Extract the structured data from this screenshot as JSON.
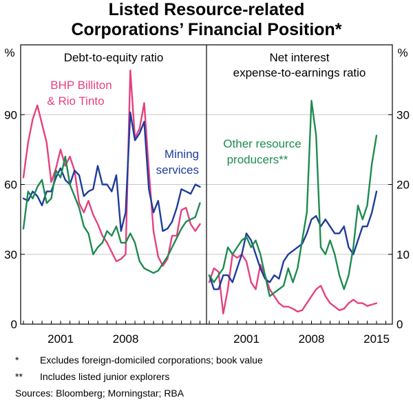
{
  "title_line1": "Listed Resource-related",
  "title_line2": "Corporations’ Financial Position*",
  "footnotes": {
    "n1_mark": "*",
    "n1_text": "Excludes foreign-domiciled corporations; book value",
    "n2_mark": "**",
    "n2_text": "Includes listed junior explorers",
    "sources": "Sources:   Bloomberg; Morningstar; RBA"
  },
  "colors": {
    "bhp": "#e5407f",
    "mining_services": "#1f3b9a",
    "other_resource": "#1d8b4f",
    "frame": "#000000"
  },
  "chart_data": [
    {
      "type": "line",
      "title": "Debt-to-equity ratio",
      "ylabel": "%",
      "ylim": [
        0,
        120
      ],
      "yticks": [
        0,
        30,
        60,
        90
      ],
      "xlim": [
        1996.7,
        2016.7
      ],
      "xticks": [
        2001,
        2008
      ],
      "x_tick_labels": [
        "2001",
        "2008"
      ],
      "series_labels": {
        "bhp": [
          "BHP Billiton",
          "& Rio Tinto"
        ],
        "mining_services": [
          "Mining",
          "services"
        ]
      },
      "series": [
        {
          "name": "BHP Billiton & Rio Tinto",
          "color_key": "bhp",
          "x": [
            1997.0,
            1997.5,
            1998.0,
            1998.5,
            1999.0,
            1999.5,
            2000.0,
            2000.5,
            2001.0,
            2001.5,
            2002.0,
            2002.5,
            2003.0,
            2003.5,
            2004.0,
            2004.5,
            2005.0,
            2005.5,
            2006.0,
            2006.5,
            2007.0,
            2007.5,
            2008.0,
            2008.5,
            2009.0,
            2009.5,
            2010.0,
            2010.5,
            2011.0,
            2011.5,
            2012.0,
            2012.5,
            2013.0,
            2013.5,
            2014.0,
            2014.5,
            2015.0,
            2015.5,
            2016.0
          ],
          "values": [
            63,
            78,
            88,
            94,
            86,
            78,
            61,
            67,
            75,
            68,
            72,
            66,
            52,
            48,
            53,
            47,
            43,
            38,
            35,
            31,
            27,
            28,
            30,
            109,
            80,
            84,
            95,
            66,
            40,
            29,
            25,
            28,
            38,
            38,
            49,
            50,
            43,
            40,
            43
          ]
        },
        {
          "name": "Mining services",
          "color_key": "mining_services",
          "x": [
            1997.0,
            1997.5,
            1998.0,
            1998.5,
            1999.0,
            1999.5,
            2000.0,
            2000.5,
            2001.0,
            2001.5,
            2002.0,
            2002.5,
            2003.0,
            2003.5,
            2004.0,
            2004.5,
            2005.0,
            2005.5,
            2006.0,
            2006.5,
            2007.0,
            2007.5,
            2008.0,
            2008.5,
            2009.0,
            2009.5,
            2010.0,
            2010.5,
            2011.0,
            2011.5,
            2012.0,
            2012.5,
            2013.0,
            2013.5,
            2014.0,
            2014.5,
            2015.0,
            2015.5,
            2016.0
          ],
          "values": [
            54,
            53,
            57,
            55,
            51,
            57,
            57,
            63,
            67,
            62,
            60,
            66,
            64,
            55,
            57,
            58,
            68,
            60,
            60,
            57,
            64,
            40,
            48,
            91,
            79,
            82,
            87,
            58,
            48,
            53,
            40,
            41,
            44,
            50,
            58,
            57,
            56,
            60,
            59
          ]
        },
        {
          "name": "Other resource producers",
          "color_key": "other_resource",
          "x": [
            1997.0,
            1997.5,
            1998.0,
            1998.5,
            1999.0,
            1999.5,
            2000.0,
            2000.5,
            2001.0,
            2001.5,
            2002.0,
            2002.5,
            2003.0,
            2003.5,
            2004.0,
            2004.5,
            2005.0,
            2005.5,
            2006.0,
            2006.5,
            2007.0,
            2007.5,
            2008.0,
            2008.5,
            2009.0,
            2009.5,
            2010.0,
            2010.5,
            2011.0,
            2011.5,
            2012.0,
            2012.5,
            2013.0,
            2013.5,
            2014.0,
            2014.5,
            2015.0,
            2015.5,
            2016.0
          ],
          "values": [
            41,
            57,
            54,
            59,
            62,
            52,
            54,
            66,
            63,
            72,
            60,
            55,
            50,
            42,
            39,
            30,
            33,
            35,
            40,
            38,
            42,
            35,
            35,
            39,
            35,
            27,
            24,
            23,
            22,
            23,
            26,
            29,
            33,
            37,
            41,
            44,
            45,
            46,
            52
          ]
        }
      ]
    },
    {
      "type": "line",
      "title": "Net interest expense-to-earnings ratio",
      "title_lines": [
        "Net interest",
        "expense-to-earnings ratio"
      ],
      "ylabel": "%",
      "ylim": [
        0,
        40
      ],
      "yticks": [
        0,
        10,
        20,
        30
      ],
      "xlim": [
        1996.7,
        2016.7
      ],
      "xticks": [
        2001,
        2008,
        2015
      ],
      "x_tick_labels": [
        "2001",
        "2008",
        "2015"
      ],
      "series_labels": {
        "other_resource": [
          "Other resource",
          "producers**"
        ]
      },
      "series": [
        {
          "name": "BHP Billiton & Rio Tinto",
          "color_key": "bhp",
          "x": [
            1997.0,
            1997.5,
            1998.0,
            1998.5,
            1999.0,
            1999.5,
            2000.0,
            2000.5,
            2001.0,
            2001.5,
            2002.0,
            2002.5,
            2003.0,
            2003.5,
            2004.0,
            2004.5,
            2005.0,
            2005.5,
            2006.0,
            2006.5,
            2007.0,
            2007.5,
            2008.0,
            2008.5,
            2009.0,
            2009.5,
            2010.0,
            2010.5,
            2011.0,
            2011.5,
            2012.0,
            2012.5,
            2013.0,
            2013.5,
            2014.0,
            2014.5,
            2015.0
          ],
          "values": [
            6,
            8,
            7.5,
            1.5,
            5,
            10,
            9.5,
            10,
            9,
            6,
            5,
            8.5,
            7,
            5,
            4,
            3,
            2.5,
            2.5,
            2.2,
            1.8,
            2,
            3,
            4,
            5,
            5.5,
            4,
            3,
            2.5,
            2,
            2.2,
            3,
            3.5,
            3,
            3,
            2.6,
            2.8,
            3
          ]
        },
        {
          "name": "Mining services",
          "color_key": "mining_services",
          "x": [
            1997.0,
            1997.5,
            1998.0,
            1998.5,
            1999.0,
            1999.5,
            2000.0,
            2000.5,
            2001.0,
            2001.5,
            2002.0,
            2002.5,
            2003.0,
            2003.5,
            2004.0,
            2004.5,
            2005.0,
            2005.5,
            2006.0,
            2006.5,
            2007.0,
            2007.5,
            2008.0,
            2008.5,
            2009.0,
            2009.5,
            2010.0,
            2010.5,
            2011.0,
            2011.5,
            2012.0,
            2012.5,
            2013.0,
            2013.5,
            2014.0,
            2014.5,
            2015.0
          ],
          "values": [
            7,
            5,
            5,
            7,
            7,
            6,
            8,
            10,
            13,
            12,
            10,
            8,
            6.5,
            6,
            7,
            6.5,
            9,
            10,
            10.5,
            11,
            11.5,
            13,
            15,
            15.5,
            14,
            15,
            14,
            13,
            13,
            14,
            11,
            10,
            12,
            14,
            14,
            16,
            19
          ]
        },
        {
          "name": "Other resource producers",
          "color_key": "other_resource",
          "x": [
            1997.0,
            1997.5,
            1998.0,
            1998.5,
            1999.0,
            1999.5,
            2000.0,
            2000.5,
            2001.0,
            2001.5,
            2002.0,
            2002.5,
            2003.0,
            2003.5,
            2004.0,
            2004.5,
            2005.0,
            2005.5,
            2006.0,
            2006.5,
            2007.0,
            2007.5,
            2008.0,
            2008.5,
            2009.0,
            2009.5,
            2010.0,
            2010.5,
            2011.0,
            2011.5,
            2012.0,
            2012.5,
            2013.0,
            2013.5,
            2014.0,
            2014.5,
            2015.0
          ],
          "values": [
            7,
            6,
            7,
            8,
            11,
            10,
            11,
            12,
            12.5,
            11,
            12,
            10,
            7,
            4,
            4.5,
            5,
            5.5,
            8,
            6,
            8,
            12,
            16,
            32,
            27,
            11,
            10,
            12,
            10,
            7,
            5,
            7,
            11,
            17,
            15,
            17,
            23,
            27
          ]
        }
      ]
    }
  ]
}
